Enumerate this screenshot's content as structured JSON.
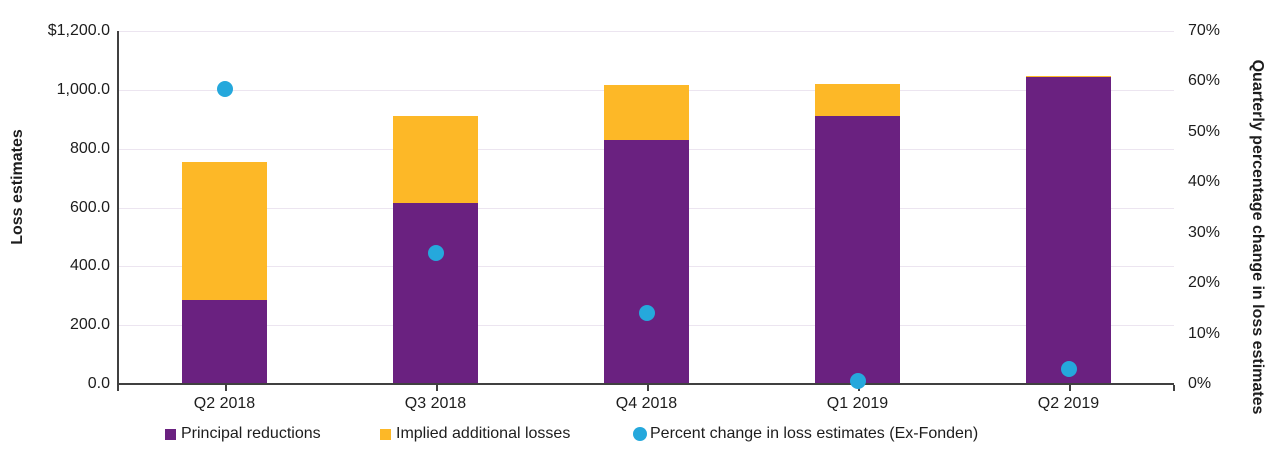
{
  "chart_data": {
    "type": "bar",
    "subtype": "stacked-bars-with-scatter-overlay",
    "title": "",
    "categories": [
      "Q2 2018",
      "Q3 2018",
      "Q4 2018",
      "Q1 2019",
      "Q2 2019"
    ],
    "series": [
      {
        "name": "Principal reductions",
        "kind": "bar",
        "stacked": true,
        "axis": "left",
        "color": "#6a2180",
        "values": [
          285,
          615,
          830,
          910,
          1043
        ]
      },
      {
        "name": "Implied additional losses",
        "kind": "bar",
        "stacked": true,
        "axis": "left",
        "color": "#fdb827",
        "values": [
          470,
          295,
          185,
          110,
          5
        ]
      },
      {
        "name": "Percent change in loss estimates (Ex-Fonden)",
        "kind": "scatter",
        "axis": "right",
        "color": "#25a8dc",
        "values": [
          58.5,
          26,
          14,
          0.5,
          3
        ]
      }
    ],
    "left_axis": {
      "title": "Loss estimates",
      "min": 0,
      "max": 1200,
      "step": 200,
      "tick_labels": [
        "$1,200.0",
        "1,000.0",
        "800.0",
        "600.0",
        "400.0",
        "200.0",
        "0.0"
      ]
    },
    "right_axis": {
      "title": "Quarterly percentage change in loss estimates",
      "min": 0,
      "max": 70,
      "step": 10,
      "tick_labels": [
        "70%",
        "60%",
        "50%",
        "40%",
        "30%",
        "20%",
        "10%",
        "0%"
      ]
    },
    "grid": true,
    "legend_position": "bottom",
    "legend": {
      "items": [
        {
          "label": "Principal reductions",
          "marker": "square",
          "color": "#6a2180"
        },
        {
          "label": "Implied additional losses",
          "marker": "square",
          "color": "#fdb827"
        },
        {
          "label": "Percent change in loss estimates (Ex-Fonden)",
          "marker": "circle",
          "color": "#25a8dc"
        }
      ]
    },
    "colors": {
      "gridline": "#ece5f0",
      "axis_line": "#404040",
      "text": "#1d1d1d",
      "background": "#ffffff"
    }
  }
}
